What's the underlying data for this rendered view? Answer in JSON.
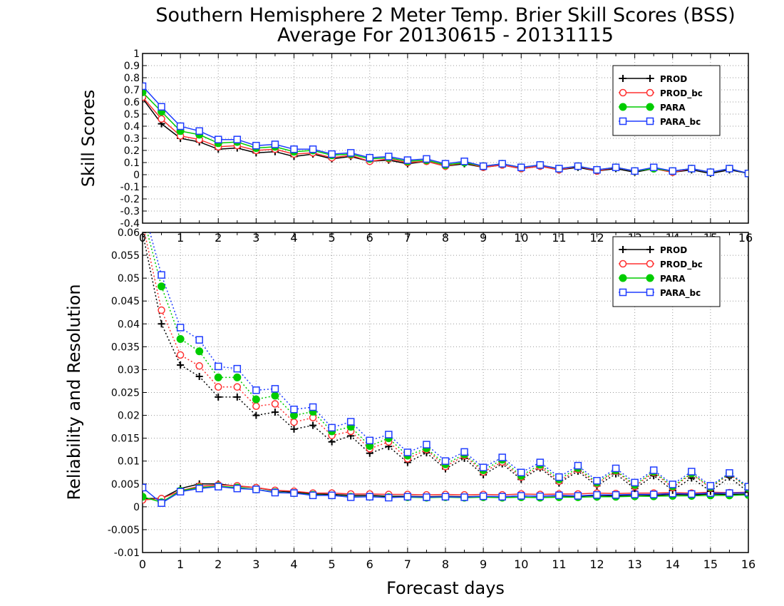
{
  "title_line1": "Southern Hemisphere 2 Meter Temp. Brier Skill Scores (BSS)",
  "title_line2": "Average For 20130615 - 20131115",
  "xlabel": "Forecast days",
  "colors": {
    "PROD": "#000000",
    "PROD_bc": "#ff3030",
    "PARA": "#00cc00",
    "PARA_bc": "#1e3cff"
  },
  "chart_data": [
    {
      "type": "line",
      "ylabel": "Skill Scores",
      "xlim": [
        0,
        16
      ],
      "ylim": [
        -0.4,
        1
      ],
      "yticks": [
        "-0.4",
        "-0.3",
        "-0.2",
        "-0.1",
        "0",
        "0.1",
        "0.2",
        "0.3",
        "0.4",
        "0.5",
        "0.6",
        "0.7",
        "0.8",
        "0.9",
        "1"
      ],
      "xticks": [
        "0",
        "1",
        "2",
        "3",
        "4",
        "5",
        "6",
        "7",
        "8",
        "9",
        "10",
        "11",
        "12",
        "13",
        "14",
        "15",
        "16"
      ],
      "grid": true,
      "legend_position": "top-right",
      "x": [
        0,
        0.5,
        1,
        1.5,
        2,
        2.5,
        3,
        3.5,
        4,
        4.5,
        5,
        5.5,
        6,
        6.5,
        7,
        7.5,
        8,
        8.5,
        9,
        9.5,
        10,
        10.5,
        11,
        11.5,
        12,
        12.5,
        13,
        13.5,
        14,
        14.5,
        15,
        15.5,
        16
      ],
      "series": [
        {
          "name": "PROD",
          "marker": "plus",
          "line": "solid",
          "values": [
            0.63,
            0.42,
            0.3,
            0.27,
            0.21,
            0.22,
            0.18,
            0.19,
            0.15,
            0.17,
            0.13,
            0.15,
            0.11,
            0.12,
            0.09,
            0.11,
            0.07,
            0.09,
            0.06,
            0.08,
            0.05,
            0.07,
            0.04,
            0.06,
            0.03,
            0.05,
            0.02,
            0.05,
            0.02,
            0.04,
            0.01,
            0.04,
            0.01
          ]
        },
        {
          "name": "PROD_bc",
          "marker": "circle",
          "line": "solid",
          "values": [
            0.64,
            0.46,
            0.32,
            0.29,
            0.23,
            0.24,
            0.2,
            0.21,
            0.17,
            0.18,
            0.14,
            0.16,
            0.11,
            0.13,
            0.1,
            0.11,
            0.07,
            0.1,
            0.06,
            0.08,
            0.05,
            0.07,
            0.04,
            0.07,
            0.03,
            0.06,
            0.03,
            0.05,
            0.02,
            0.05,
            0.02,
            0.05,
            0.01
          ]
        },
        {
          "name": "PARA",
          "marker": "dot",
          "line": "solid",
          "values": [
            0.68,
            0.52,
            0.36,
            0.33,
            0.26,
            0.27,
            0.22,
            0.23,
            0.19,
            0.2,
            0.16,
            0.17,
            0.13,
            0.14,
            0.11,
            0.12,
            0.08,
            0.1,
            0.07,
            0.09,
            0.06,
            0.08,
            0.05,
            0.07,
            0.04,
            0.06,
            0.03,
            0.05,
            0.03,
            0.05,
            0.02,
            0.05,
            0.01
          ]
        },
        {
          "name": "PARA_bc",
          "marker": "square",
          "line": "solid",
          "values": [
            0.73,
            0.56,
            0.4,
            0.36,
            0.29,
            0.29,
            0.24,
            0.25,
            0.21,
            0.21,
            0.17,
            0.18,
            0.14,
            0.15,
            0.12,
            0.13,
            0.09,
            0.11,
            0.07,
            0.09,
            0.06,
            0.08,
            0.05,
            0.07,
            0.04,
            0.06,
            0.03,
            0.06,
            0.03,
            0.05,
            0.02,
            0.05,
            0.01
          ]
        }
      ]
    },
    {
      "type": "line",
      "ylabel": "Reliability and Resolution",
      "xlim": [
        0,
        16
      ],
      "ylim": [
        -0.01,
        0.06
      ],
      "yticks": [
        "-0.01",
        "-0.005",
        "0",
        "0.005",
        "0.01",
        "0.015",
        "0.02",
        "0.025",
        "0.03",
        "0.035",
        "0.04",
        "0.045",
        "0.05",
        "0.055",
        "0.06"
      ],
      "xticks": [
        "0",
        "1",
        "2",
        "3",
        "4",
        "5",
        "6",
        "7",
        "8",
        "9",
        "10",
        "11",
        "12",
        "13",
        "14",
        "15",
        "16"
      ],
      "grid": true,
      "legend_position": "top-right",
      "x": [
        0,
        0.5,
        1,
        1.5,
        2,
        2.5,
        3,
        3.5,
        4,
        4.5,
        5,
        5.5,
        6,
        6.5,
        7,
        7.5,
        8,
        8.5,
        9,
        9.5,
        10,
        10.5,
        11,
        11.5,
        12,
        12.5,
        13,
        13.5,
        14,
        14.5,
        15,
        15.5,
        16
      ],
      "series": [
        {
          "name": "PROD",
          "marker": "plus",
          "line": "solid",
          "group": "reliability",
          "values": [
            0.0018,
            0.0018,
            0.004,
            0.005,
            0.005,
            0.0045,
            0.0042,
            0.0035,
            0.0032,
            0.0028,
            0.0027,
            0.0025,
            0.0025,
            0.0023,
            0.0023,
            0.0022,
            0.0023,
            0.0022,
            0.0023,
            0.0022,
            0.0024,
            0.0023,
            0.0024,
            0.0023,
            0.0025,
            0.0024,
            0.0026,
            0.0025,
            0.0027,
            0.0026,
            0.0028,
            0.0027,
            0.0028
          ]
        },
        {
          "name": "PROD_bc",
          "marker": "circle",
          "line": "solid",
          "group": "reliability",
          "values": [
            0.0015,
            0.0018,
            0.0035,
            0.0045,
            0.0048,
            0.0046,
            0.0042,
            0.0036,
            0.0034,
            0.003,
            0.003,
            0.0028,
            0.0028,
            0.0027,
            0.0027,
            0.0026,
            0.0027,
            0.0026,
            0.0027,
            0.0026,
            0.0028,
            0.0027,
            0.0028,
            0.0028,
            0.003,
            0.0029,
            0.003,
            0.003,
            0.0031,
            0.003,
            0.0032,
            0.0031,
            0.0032
          ]
        },
        {
          "name": "PARA",
          "marker": "dot",
          "line": "solid",
          "group": "reliability",
          "values": [
            0.0022,
            0.001,
            0.0035,
            0.0042,
            0.0045,
            0.0042,
            0.0038,
            0.0032,
            0.003,
            0.0026,
            0.0025,
            0.0022,
            0.0022,
            0.0021,
            0.0021,
            0.002,
            0.0021,
            0.002,
            0.0021,
            0.002,
            0.0021,
            0.002,
            0.0021,
            0.0021,
            0.0022,
            0.0022,
            0.0023,
            0.0023,
            0.0024,
            0.0024,
            0.0025,
            0.0025,
            0.0026
          ]
        },
        {
          "name": "PARA_bc",
          "marker": "square",
          "line": "solid",
          "group": "reliability",
          "values": [
            0.0042,
            0.0008,
            0.0033,
            0.004,
            0.0044,
            0.004,
            0.0038,
            0.0031,
            0.003,
            0.0025,
            0.0025,
            0.0021,
            0.0022,
            0.002,
            0.0022,
            0.0021,
            0.0022,
            0.0021,
            0.0023,
            0.0022,
            0.0024,
            0.0023,
            0.0025,
            0.0024,
            0.0026,
            0.0026,
            0.0027,
            0.0027,
            0.0029,
            0.0028,
            0.003,
            0.003,
            0.0031
          ]
        },
        {
          "name": "PROD",
          "marker": "plus",
          "line": "dotted",
          "group": "resolution",
          "values": [
            0.06,
            0.04,
            0.031,
            0.0285,
            0.024,
            0.024,
            0.02,
            0.0207,
            0.017,
            0.0178,
            0.0142,
            0.0155,
            0.0117,
            0.0132,
            0.0097,
            0.0118,
            0.0083,
            0.0106,
            0.007,
            0.0094,
            0.006,
            0.0085,
            0.0052,
            0.0078,
            0.0046,
            0.0072,
            0.004,
            0.0068,
            0.0036,
            0.0063,
            0.0034,
            0.0065,
            0.0032
          ]
        },
        {
          "name": "PROD_bc",
          "marker": "circle",
          "line": "dotted",
          "group": "resolution",
          "values": [
            0.062,
            0.043,
            0.0332,
            0.0308,
            0.0262,
            0.0262,
            0.022,
            0.0225,
            0.0185,
            0.0195,
            0.0156,
            0.0165,
            0.0127,
            0.0142,
            0.0105,
            0.0125,
            0.0088,
            0.0112,
            0.0076,
            0.0098,
            0.0065,
            0.0088,
            0.0056,
            0.0082,
            0.005,
            0.0078,
            0.0045,
            0.0075,
            0.0042,
            0.0072,
            0.0041,
            0.0072,
            0.004
          ]
        },
        {
          "name": "PARA",
          "marker": "dot",
          "line": "dotted",
          "group": "resolution",
          "values": [
            0.064,
            0.0482,
            0.0367,
            0.034,
            0.0283,
            0.0283,
            0.0235,
            0.0243,
            0.02,
            0.0208,
            0.0165,
            0.0175,
            0.0133,
            0.015,
            0.0112,
            0.0128,
            0.0093,
            0.0115,
            0.008,
            0.0103,
            0.0068,
            0.0092,
            0.006,
            0.0085,
            0.0053,
            0.008,
            0.0048,
            0.0077,
            0.0045,
            0.0073,
            0.0043,
            0.0073,
            0.0041
          ]
        },
        {
          "name": "PARA_bc",
          "marker": "square",
          "line": "dotted",
          "group": "resolution",
          "values": [
            0.066,
            0.0507,
            0.0392,
            0.0365,
            0.0307,
            0.0302,
            0.0255,
            0.0258,
            0.0213,
            0.0218,
            0.0173,
            0.0186,
            0.0145,
            0.0158,
            0.0119,
            0.0136,
            0.01,
            0.012,
            0.0086,
            0.0108,
            0.0075,
            0.0097,
            0.0065,
            0.009,
            0.0057,
            0.0084,
            0.0053,
            0.008,
            0.0049,
            0.0077,
            0.0046,
            0.0074,
            0.0044
          ]
        }
      ]
    }
  ]
}
